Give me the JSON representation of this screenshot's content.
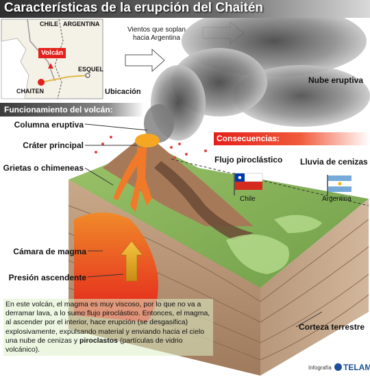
{
  "title": "Características de la erupción del Chaitén",
  "map": {
    "country_left": "CHILE",
    "country_right": "ARGENTINA",
    "volcano_tag": "Volcán",
    "town_left": "CHAITEN",
    "town_right": "ESQUEL",
    "caption": "Ubicación"
  },
  "winds_label": "Vientos que soplan\nhacia Argentina",
  "cloud_label": "Nube eruptiva",
  "section_heading": "Funcionamiento del volcán:",
  "labels": {
    "column": "Columna eruptiva",
    "crater": "Cráter principal",
    "fissures": "Grietas o chimeneas",
    "chamber": "Cámara de magma",
    "pressure": "Presión ascendente",
    "crust": "Corteza terrestre"
  },
  "consequences": {
    "heading": "Consecuencias:",
    "pyroclastic": "Flujo piroclástico",
    "ash_rain": "Lluvia de cenizas",
    "flag_chile": "Chile",
    "flag_argentina": "Argentina"
  },
  "description": {
    "p1": "En este volcán, el magma es muy viscoso, por lo que no va a derramar lava, a lo sumo flujo piroclástico. Entonces, el magma, al ascender por el interior, hace erupción (se desgasifica) explosivamente, expulsando material y enviando hacia el cielo una nube de cenizas y ",
    "bold": "piroclastos",
    "p2": " (partículas de vidrio volcánico)."
  },
  "credit": {
    "prefix": "Infografía",
    "brand": "TELAM"
  },
  "colors": {
    "magma": "#e3201b",
    "magma_orange": "#f07a2a",
    "ground_green": "#8ab85a",
    "title_bg": "#3a3a3a"
  }
}
